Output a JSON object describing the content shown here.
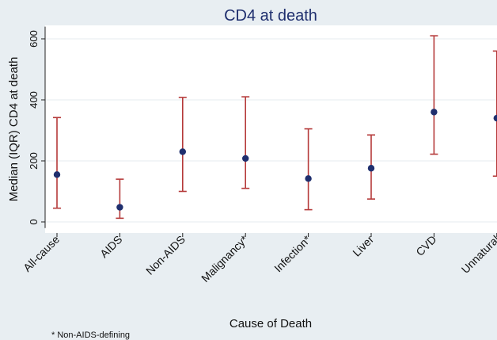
{
  "chart_data": {
    "type": "scatter",
    "title": "CD4 at death",
    "xlabel": "Cause of Death",
    "ylabel": "Median (IQR) CD4 at death",
    "ylim": [
      -20,
      640
    ],
    "yticks": [
      0,
      200,
      400,
      600
    ],
    "grid": true,
    "categories": [
      "All-cause",
      "AIDS",
      "Non-AIDS",
      "Malignancy*",
      "Infection*",
      "Liver",
      "CVD",
      "Unnatural"
    ],
    "series": [
      {
        "median": [
          155,
          48,
          230,
          208,
          142,
          176,
          360,
          340
        ],
        "lower": [
          45,
          12,
          100,
          110,
          40,
          75,
          222,
          150
        ],
        "upper": [
          342,
          140,
          408,
          410,
          305,
          285,
          610,
          560
        ]
      }
    ],
    "footnote": "* Non-AIDS-defining",
    "colors": {
      "point": "#1f2f6e",
      "error_bar": "#b53a3a",
      "panel_bg": "#ffffff",
      "outer_bg": "#e8eef2",
      "grid": "#e6ebef",
      "title": "#1f2f6e"
    }
  }
}
